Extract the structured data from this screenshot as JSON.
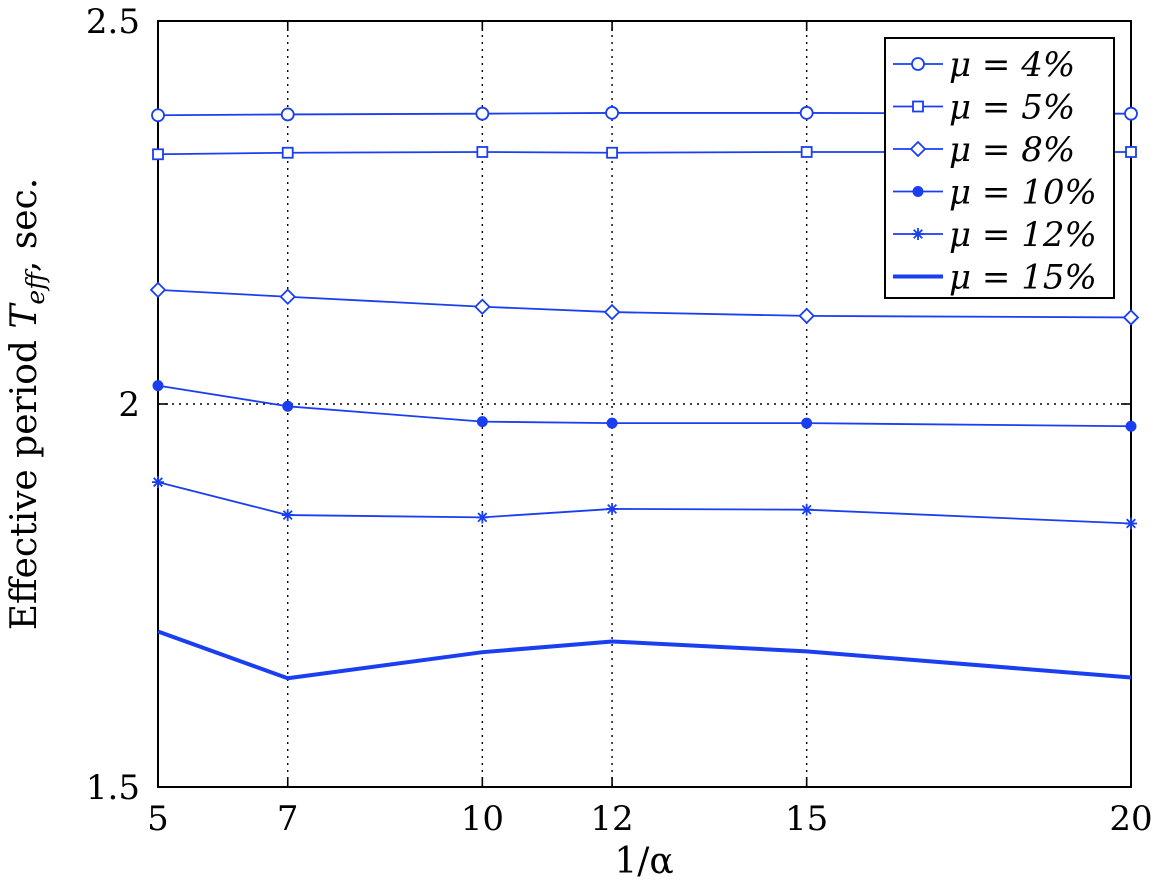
{
  "chart_data": {
    "type": "line",
    "title": "",
    "xlabel": "1/α",
    "ylabel": "Effective period T_eff, sec.",
    "x": [
      5,
      7,
      10,
      12,
      15,
      20
    ],
    "xticks": [
      "5",
      "7",
      "10",
      "12",
      "15",
      "20"
    ],
    "yticks": [
      "1.5",
      "2",
      "2.5"
    ],
    "ytick_values": [
      1.5,
      2,
      2.5
    ],
    "xlim": [
      5,
      20
    ],
    "ylim": [
      1.5,
      2.5
    ],
    "grid": true,
    "legend_position": "top-right",
    "line_color": "#1a3ff0",
    "series": [
      {
        "name": "μ = 4%",
        "marker": "circle",
        "values": [
          2.377,
          2.378,
          2.379,
          2.38,
          2.38,
          2.379
        ]
      },
      {
        "name": "μ = 5%",
        "marker": "square",
        "values": [
          2.326,
          2.328,
          2.329,
          2.328,
          2.329,
          2.329
        ]
      },
      {
        "name": "μ = 8%",
        "marker": "diamond",
        "values": [
          2.149,
          2.14,
          2.127,
          2.12,
          2.115,
          2.113
        ]
      },
      {
        "name": "μ = 10%",
        "marker": "dot",
        "values": [
          2.024,
          1.997,
          1.977,
          1.975,
          1.975,
          1.971
        ]
      },
      {
        "name": "μ = 12%",
        "marker": "star",
        "values": [
          1.898,
          1.855,
          1.852,
          1.863,
          1.862,
          1.844
        ]
      },
      {
        "name": "μ = 15%",
        "marker": "none",
        "values": [
          1.703,
          1.642,
          1.676,
          1.69,
          1.677,
          1.643
        ]
      }
    ]
  }
}
